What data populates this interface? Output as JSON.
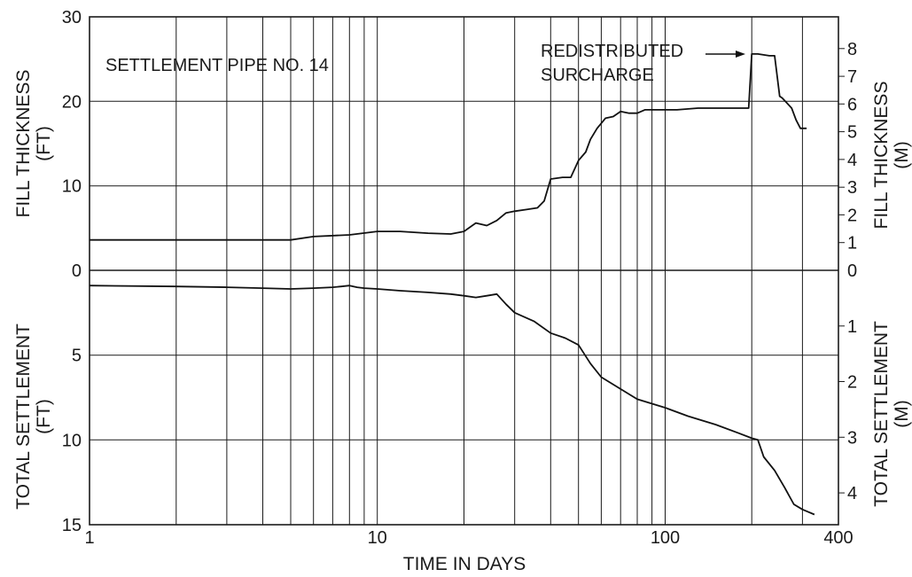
{
  "chart_data": {
    "type": "line",
    "annotation_title": "SETTLEMENT PIPE NO. 14",
    "callout": [
      "REDISTRIBUTED",
      "SURCHARGE"
    ],
    "xlabel": "TIME IN DAYS",
    "x_scale": "log",
    "xlim": [
      1,
      400
    ],
    "x_ticks": [
      "1",
      "10",
      "100",
      "400"
    ],
    "grid": true,
    "upper_panel": {
      "ylabel_left": [
        "FILL THICKNESS",
        "(FT)"
      ],
      "ylabel_right": [
        "FILL THICKNESS",
        "(M)"
      ],
      "ylim": [
        0,
        30
      ],
      "left_ticks": [
        "0",
        "10",
        "20",
        "30"
      ],
      "right_ticks": [
        "0",
        "1",
        "2",
        "3",
        "4",
        "5",
        "6",
        "7",
        "8"
      ],
      "series": {
        "x": [
          1,
          2,
          4,
          5,
          6,
          8,
          10,
          12,
          15,
          18,
          20,
          22,
          24,
          26,
          28,
          30,
          33,
          36,
          38,
          40,
          44,
          47,
          50,
          53,
          55,
          58,
          62,
          66,
          70,
          75,
          80,
          85,
          95,
          110,
          130,
          160,
          180,
          195,
          200,
          210,
          230,
          240,
          250,
          255,
          265,
          275,
          285,
          295,
          310
        ],
        "y": [
          3.6,
          3.6,
          3.6,
          3.6,
          4.0,
          4.2,
          4.6,
          4.6,
          4.4,
          4.3,
          4.6,
          5.6,
          5.3,
          5.9,
          6.8,
          7.0,
          7.2,
          7.4,
          8.2,
          10.8,
          11.0,
          11.0,
          13.0,
          14.0,
          15.5,
          16.8,
          18.0,
          18.2,
          18.8,
          18.6,
          18.6,
          19.0,
          19.0,
          19.0,
          19.2,
          19.2,
          19.2,
          19.2,
          25.6,
          25.6,
          25.4,
          25.4,
          20.6,
          20.4,
          19.8,
          19.2,
          17.8,
          16.8,
          16.8
        ]
      }
    },
    "lower_panel": {
      "ylabel_left": [
        "TOTAL SETTLEMENT",
        "(FT)"
      ],
      "ylabel_right": [
        "TOTAL SETTLEMENT",
        "(M)"
      ],
      "ylim": [
        0,
        15
      ],
      "left_ticks": [
        "0",
        "5",
        "10",
        "15"
      ],
      "right_ticks": [
        "0",
        "1",
        "2",
        "3",
        "4"
      ],
      "series": {
        "x": [
          1,
          2,
          3,
          4,
          5,
          6,
          7,
          7.5,
          8,
          8.5,
          9,
          10,
          12,
          15,
          18,
          20,
          22,
          24,
          26,
          28,
          30,
          35,
          40,
          45,
          50,
          55,
          60,
          70,
          80,
          100,
          120,
          150,
          180,
          200,
          210,
          220,
          240,
          260,
          280,
          300,
          330
        ],
        "y": [
          0.9,
          0.95,
          1.0,
          1.05,
          1.1,
          1.05,
          1.0,
          0.95,
          0.9,
          1.0,
          1.05,
          1.1,
          1.2,
          1.3,
          1.4,
          1.5,
          1.6,
          1.5,
          1.4,
          2.0,
          2.5,
          3.0,
          3.7,
          4.0,
          4.4,
          5.5,
          6.3,
          7.0,
          7.6,
          8.1,
          8.6,
          9.1,
          9.6,
          9.9,
          10.0,
          11.0,
          11.8,
          12.8,
          13.8,
          14.1,
          14.4
        ]
      }
    }
  }
}
